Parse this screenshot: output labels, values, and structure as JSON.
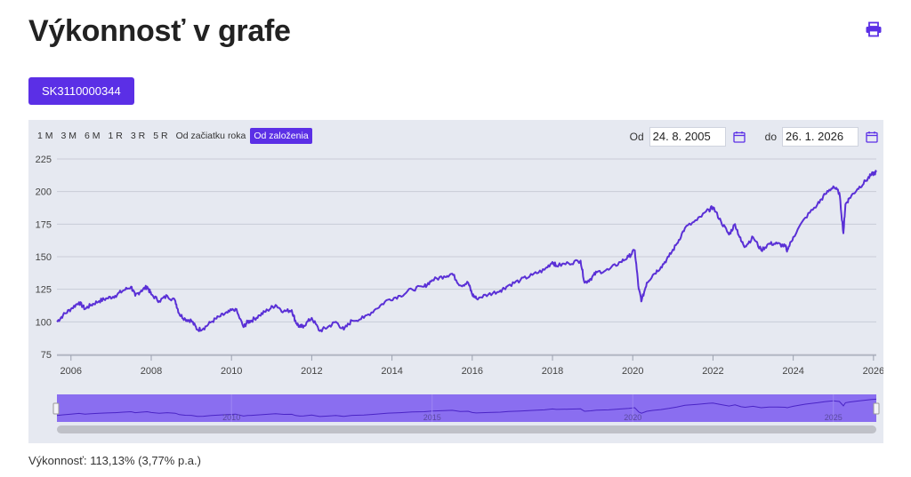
{
  "page": {
    "title": "Výkonnosť v grafe",
    "isin": "SK3110000344"
  },
  "range_buttons": [
    "1 M",
    "3 M",
    "6 M",
    "1 R",
    "3 R",
    "5 R",
    "Od začiatku roka",
    "Od založenia"
  ],
  "active_range": "Od založenia",
  "date_range": {
    "from_label": "Od",
    "from": "24. 8. 2005",
    "to_label": "do",
    "to": "26. 1. 2026"
  },
  "performance": {
    "text": "Výkonnosť: 113,13% (3,77% p.a.)"
  },
  "icons": {
    "print": "printer-icon",
    "calendar": "calendar-icon"
  },
  "colors": {
    "accent": "#5b2fe6",
    "line": "#5a30d6",
    "panel": "#e6e9f1",
    "navigator": "#8a6ef0"
  },
  "chart_data": {
    "type": "line",
    "title": "",
    "xlabel": "",
    "ylabel": "",
    "ylim": [
      75,
      225
    ],
    "y_ticks": [
      225,
      200,
      175,
      150,
      125,
      100,
      75
    ],
    "x_ticks": [
      "2006",
      "2008",
      "2010",
      "2012",
      "2014",
      "2016",
      "2018",
      "2020",
      "2022",
      "2024",
      "2026"
    ],
    "navigator_ticks": [
      "2010",
      "2015",
      "2020",
      "2025"
    ],
    "grid": true,
    "series": [
      {
        "x": [
          2005.65,
          2005.8,
          2006.0,
          2006.2,
          2006.35,
          2006.5,
          2006.7,
          2006.9,
          2007.1,
          2007.3,
          2007.5,
          2007.6,
          2007.75,
          2007.9,
          2008.0,
          2008.2,
          2008.4,
          2008.6,
          2008.7,
          2008.85,
          2009.0,
          2009.15,
          2009.3,
          2009.5,
          2009.7,
          2009.9,
          2010.1,
          2010.3,
          2010.4,
          2010.5,
          2010.7,
          2010.9,
          2011.1,
          2011.3,
          2011.5,
          2011.6,
          2011.7,
          2011.8,
          2012.0,
          2012.2,
          2012.4,
          2012.6,
          2012.8,
          2013.0,
          2013.3,
          2013.6,
          2013.9,
          2014.2,
          2014.5,
          2014.8,
          2015.0,
          2015.3,
          2015.5,
          2015.7,
          2015.9,
          2016.0,
          2016.1,
          2016.4,
          2016.7,
          2016.9,
          2017.2,
          2017.5,
          2017.8,
          2018.0,
          2018.1,
          2018.4,
          2018.7,
          2018.8,
          2018.95,
          2019.1,
          2019.4,
          2019.7,
          2019.9,
          2020.05,
          2020.15,
          2020.22,
          2020.35,
          2020.5,
          2020.7,
          2020.9,
          2021.1,
          2021.3,
          2021.6,
          2021.9,
          2022.0,
          2022.2,
          2022.4,
          2022.55,
          2022.7,
          2022.8,
          2023.0,
          2023.2,
          2023.4,
          2023.6,
          2023.8,
          2023.85,
          2024.0,
          2024.3,
          2024.6,
          2024.8,
          2025.0,
          2025.15,
          2025.25,
          2025.3,
          2025.4,
          2025.6,
          2025.8,
          2025.95,
          2026.07
        ],
        "values": [
          100,
          105,
          110,
          115,
          110,
          113,
          116,
          118,
          120,
          124,
          127,
          120,
          124,
          127,
          121,
          116,
          120,
          116,
          106,
          102,
          101,
          94,
          95,
          100,
          104,
          107,
          110,
          96,
          100,
          101,
          105,
          109,
          113,
          108,
          109,
          100,
          96,
          97,
          103,
          93,
          96,
          100,
          94,
          101,
          103,
          110,
          117,
          120,
          125,
          127,
          132,
          135,
          137,
          128,
          130,
          121,
          118,
          121,
          124,
          128,
          132,
          136,
          140,
          146,
          143,
          145,
          147,
          130,
          133,
          138,
          140,
          146,
          150,
          155,
          125,
          116,
          130,
          136,
          142,
          150,
          160,
          172,
          178,
          186,
          188,
          177,
          167,
          175,
          162,
          158,
          165,
          155,
          160,
          160,
          158,
          155,
          165,
          180,
          190,
          198,
          204,
          199,
          168,
          190,
          195,
          202,
          208,
          213,
          215
        ]
      }
    ]
  }
}
